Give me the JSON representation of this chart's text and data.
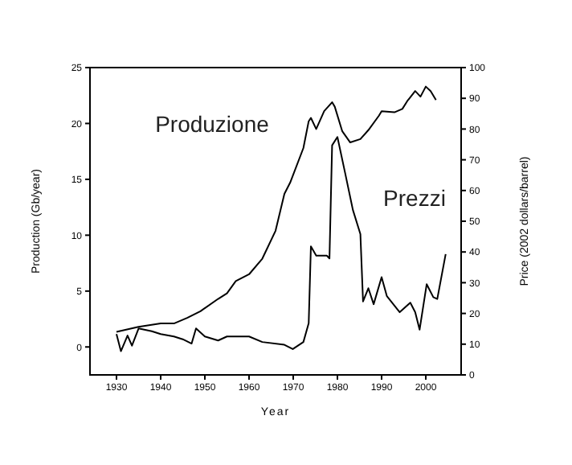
{
  "chart_data": {
    "type": "line",
    "xlabel": "Year",
    "ylabel": "Production (Gb/year)",
    "y2label": "Price (2002 dollars/barrel)",
    "xlim": [
      1924,
      2008
    ],
    "xticks": [
      1930,
      1940,
      1950,
      1960,
      1970,
      1980,
      1990,
      2000
    ],
    "ylim": [
      -2.5,
      25
    ],
    "yticks": [
      0,
      5,
      10,
      15,
      20,
      25
    ],
    "y2lim": [
      0,
      100
    ],
    "y2ticks": [
      0,
      10,
      20,
      30,
      40,
      50,
      60,
      70,
      80,
      90,
      100
    ],
    "grid": false,
    "legend": false,
    "marker": "none",
    "line_style": "solid",
    "series": [
      {
        "name": "Produzione",
        "color": "#000000",
        "x": [
          1930,
          1935,
          1940,
          1943,
          1946,
          1949,
          1953,
          1955,
          1957,
          1960,
          1963,
          1966,
          1968,
          1969.3,
          1972.3,
          1973.5,
          1974,
          1975.2,
          1977,
          1978.8,
          1979.4,
          1981.1,
          1982.9,
          1985.2,
          1987,
          1989.4,
          1990,
          1992.9,
          1994.7,
          1995.8,
          1997.6,
          1998.8,
          2000,
          2001.1,
          2002.3
        ],
        "values": [
          1.35,
          1.8,
          2.1,
          2.1,
          2.6,
          3.2,
          4.3,
          4.8,
          5.9,
          6.5,
          7.9,
          10.4,
          13.7,
          14.7,
          17.8,
          20.2,
          20.5,
          19.5,
          21.1,
          21.9,
          21.5,
          19.3,
          18.3,
          18.6,
          19.4,
          20.7,
          21.1,
          21,
          21.3,
          22,
          22.9,
          22.4,
          23.3,
          22.9,
          22.1
        ]
      },
      {
        "name": "Prezzi",
        "color": "#000000",
        "axis": "y2",
        "x": [
          1930,
          1931,
          1932.5,
          1933.5,
          1935,
          1938,
          1940,
          1943,
          1945,
          1947,
          1948,
          1950,
          1953,
          1955,
          1960,
          1963,
          1968,
          1969.9,
          1972.3,
          1973.5,
          1974,
          1975.2,
          1977.6,
          1978.2,
          1978.8,
          1980,
          1981.7,
          1983.5,
          1985.2,
          1985.8,
          1987,
          1988.2,
          1990,
          1991.2,
          1994.1,
          1996.5,
          1997.6,
          1998.6,
          2000.2,
          2001.7,
          2002.6,
          2004.5
        ],
        "values": [
          13.3,
          7.7,
          12.8,
          9.5,
          15.1,
          14.2,
          13.3,
          12.5,
          11.6,
          10.2,
          15.1,
          12.5,
          11.2,
          12.5,
          12.5,
          10.7,
          9.8,
          8.4,
          10.7,
          16.8,
          41.8,
          38.8,
          38.8,
          37.9,
          74.7,
          77.4,
          66,
          53.7,
          45.8,
          23.9,
          28.2,
          23,
          31.8,
          25.6,
          20.4,
          23.5,
          20.4,
          14.7,
          29.5,
          25.3,
          24.7,
          39.3
        ]
      }
    ]
  }
}
